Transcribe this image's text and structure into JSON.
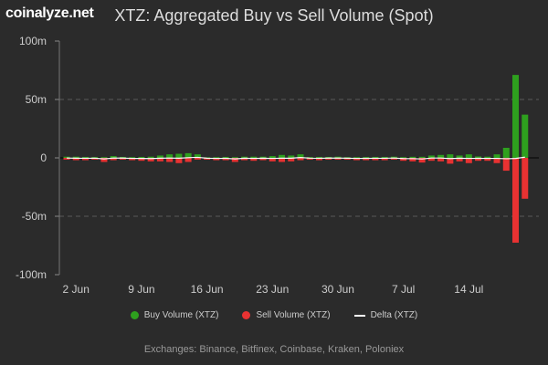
{
  "logo": "coinalyze.net",
  "chart_data": {
    "type": "bar",
    "title": "XTZ: Aggregated Buy vs Sell Volume (Spot)",
    "x_start": "2024-06-01",
    "x_tick_labels": [
      "2 Jun",
      "9 Jun",
      "16 Jun",
      "23 Jun",
      "30 Jun",
      "7 Jul",
      "14 Jul"
    ],
    "x_tick_dates": [
      "2024-06-02",
      "2024-06-09",
      "2024-06-16",
      "2024-06-23",
      "2024-06-30",
      "2024-07-07",
      "2024-07-14"
    ],
    "y_tick_labels": [
      "100m",
      "50m",
      "0",
      "-50m",
      "-100m"
    ],
    "y_ticks": [
      100,
      50,
      0,
      -50,
      -100
    ],
    "ylim": [
      -100,
      100
    ],
    "y_unit": "millions XTZ",
    "grid": true,
    "legend_placement": "bottom",
    "series": [
      {
        "name": "Buy Volume (XTZ)",
        "color": "#2ea01e",
        "values": [
          1,
          1,
          0.8,
          0.7,
          0.6,
          1.5,
          0.8,
          0.6,
          0.8,
          1,
          2,
          3,
          3.5,
          4,
          3,
          0.5,
          0.6,
          0.8,
          0.6,
          1,
          1,
          1,
          1.5,
          2.5,
          2,
          3,
          0.7,
          0.8,
          0.8,
          1,
          0.6,
          0.6,
          0.7,
          0.8,
          0.8,
          1,
          0.6,
          0.9,
          0.9,
          2,
          2.5,
          3,
          2,
          3,
          1.2,
          1,
          3,
          8.6,
          71,
          37
        ]
      },
      {
        "name": "Sell Volume (XTZ)",
        "color": "#e83232",
        "values": [
          -1.5,
          -2,
          -2,
          -1.5,
          -3.5,
          -2,
          -1.5,
          -2,
          -2.5,
          -3,
          -3,
          -3.5,
          -4.5,
          -3.5,
          -1.5,
          -1.5,
          -2,
          -2,
          -3.5,
          -2,
          -2.5,
          -2,
          -3,
          -3.5,
          -3,
          -2,
          -1.5,
          -2,
          -1.5,
          -1.5,
          -1.5,
          -2,
          -2,
          -2,
          -2,
          -1.5,
          -2.5,
          -3,
          -4,
          -2.5,
          -3,
          -5,
          -3,
          -4.5,
          -2.5,
          -2.5,
          -4.5,
          -11,
          -72.6,
          -35
        ]
      },
      {
        "name": "Delta (XTZ)",
        "color": "#ffffff",
        "values": [
          -0.5,
          -1,
          -1.2,
          -0.8,
          -2.9,
          -0.5,
          -0.7,
          -1.4,
          -1.7,
          -2,
          -1,
          -0.5,
          -1,
          0.5,
          1.5,
          -1,
          -1.4,
          -1.2,
          -2.9,
          -1,
          -1.5,
          -1,
          -1.5,
          -1,
          -1,
          1,
          -0.8,
          -1.2,
          -0.7,
          -0.5,
          -0.9,
          -1.4,
          -1.3,
          -1.2,
          -1.2,
          -0.5,
          -1.9,
          -2.1,
          -3.1,
          -0.5,
          -0.5,
          -2,
          -1,
          -1.5,
          -1.3,
          -1.5,
          -1.5,
          -2.4,
          -1.6,
          2
        ]
      }
    ]
  },
  "footer": "Exchanges: Binance, Bitfinex, Coinbase, Kraken, Poloniex"
}
